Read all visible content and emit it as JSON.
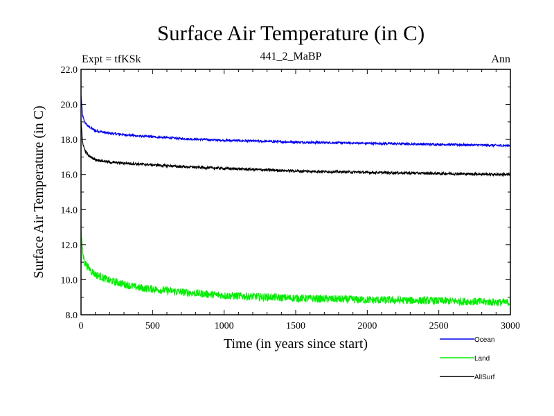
{
  "chart_data": {
    "type": "line",
    "title": "Surface Air Temperature (in C)",
    "subtitle_left": "Expt = tfKSk",
    "subtitle_center": "441_2_MaBP",
    "subtitle_right": "Ann",
    "xlabel": "Time (in years since start)",
    "ylabel": "Surface Air Temperature (in C)",
    "xlim": [
      0,
      3000
    ],
    "ylim": [
      8.0,
      22.0
    ],
    "xticks": [
      0,
      500,
      1000,
      1500,
      2000,
      2500,
      3000
    ],
    "xtick_labels": [
      "0",
      "500",
      "1000",
      "1500",
      "2000",
      "2500",
      "3000"
    ],
    "yticks": [
      8.0,
      10.0,
      12.0,
      14.0,
      16.0,
      18.0,
      20.0,
      22.0
    ],
    "ytick_labels": [
      "8.0",
      "10.0",
      "12.0",
      "14.0",
      "16.0",
      "18.0",
      "20.0",
      "22.0"
    ],
    "series": [
      {
        "name": "Ocean",
        "color": "#0000ee",
        "noise": 0.06,
        "points": [
          [
            0,
            20.5
          ],
          [
            10,
            19.4
          ],
          [
            25,
            19.0
          ],
          [
            50,
            18.75
          ],
          [
            100,
            18.5
          ],
          [
            200,
            18.35
          ],
          [
            400,
            18.2
          ],
          [
            700,
            18.05
          ],
          [
            1000,
            17.95
          ],
          [
            1500,
            17.85
          ],
          [
            2000,
            17.78
          ],
          [
            2500,
            17.72
          ],
          [
            3000,
            17.65
          ]
        ]
      },
      {
        "name": "Land",
        "color": "#00ee00",
        "noise": 0.22,
        "points": [
          [
            0,
            12.8
          ],
          [
            10,
            11.6
          ],
          [
            25,
            11.0
          ],
          [
            50,
            10.7
          ],
          [
            100,
            10.3
          ],
          [
            200,
            9.95
          ],
          [
            400,
            9.55
          ],
          [
            700,
            9.3
          ],
          [
            1000,
            9.1
          ],
          [
            1500,
            8.95
          ],
          [
            2000,
            8.85
          ],
          [
            2500,
            8.8
          ],
          [
            3000,
            8.7
          ]
        ]
      },
      {
        "name": "AllSurf",
        "color": "#000000",
        "noise": 0.07,
        "points": [
          [
            0,
            19.0
          ],
          [
            10,
            17.9
          ],
          [
            25,
            17.4
          ],
          [
            50,
            17.1
          ],
          [
            100,
            16.85
          ],
          [
            200,
            16.7
          ],
          [
            400,
            16.6
          ],
          [
            700,
            16.45
          ],
          [
            1000,
            16.35
          ],
          [
            1500,
            16.2
          ],
          [
            2000,
            16.12
          ],
          [
            2500,
            16.06
          ],
          [
            3000,
            16.0
          ]
        ]
      }
    ]
  }
}
